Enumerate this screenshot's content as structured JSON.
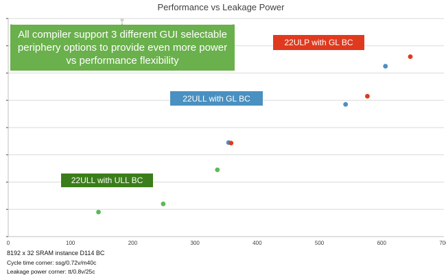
{
  "chart_data": {
    "type": "scatter",
    "title": "Performance vs Leakage Power",
    "xlim": [
      0,
      700
    ],
    "x_ticks": [
      "0",
      "100",
      "200",
      "300",
      "400",
      "500",
      "600",
      "700"
    ],
    "y_tick_count": 9,
    "grid": true,
    "series": [
      {
        "name": "22ULL with ULL BC",
        "color": "#5cb85c",
        "points": [
          [
            145,
            0.9
          ],
          [
            249,
            1.2
          ],
          [
            336,
            2.45
          ]
        ]
      },
      {
        "name": "22ULL with GL BC",
        "color": "#4a90c0",
        "points": [
          [
            354,
            3.45
          ],
          [
            542,
            4.85
          ],
          [
            606,
            6.25
          ]
        ]
      },
      {
        "name": "22ULP with GL BC",
        "color": "#e03a1e",
        "points": [
          [
            358,
            3.43
          ],
          [
            577,
            5.15
          ],
          [
            646,
            6.6
          ]
        ]
      }
    ]
  },
  "callout": {
    "text": "All compiler support 3 different GUI selectable periphery options to provide even more power vs performance flexibility"
  },
  "labels": {
    "ulp_gl": "22ULP with GL BC",
    "ull_gl": "22ULL with GL BC",
    "ull_ull": "22ULL with ULL BC"
  },
  "notes": {
    "instance": "8192 x 32 SRAM instance D114 BC",
    "cycle": "Cycle time corner: ssg/0.72v/m40c",
    "leakage": "Leakage power corner: tt/0.8v/25c"
  }
}
